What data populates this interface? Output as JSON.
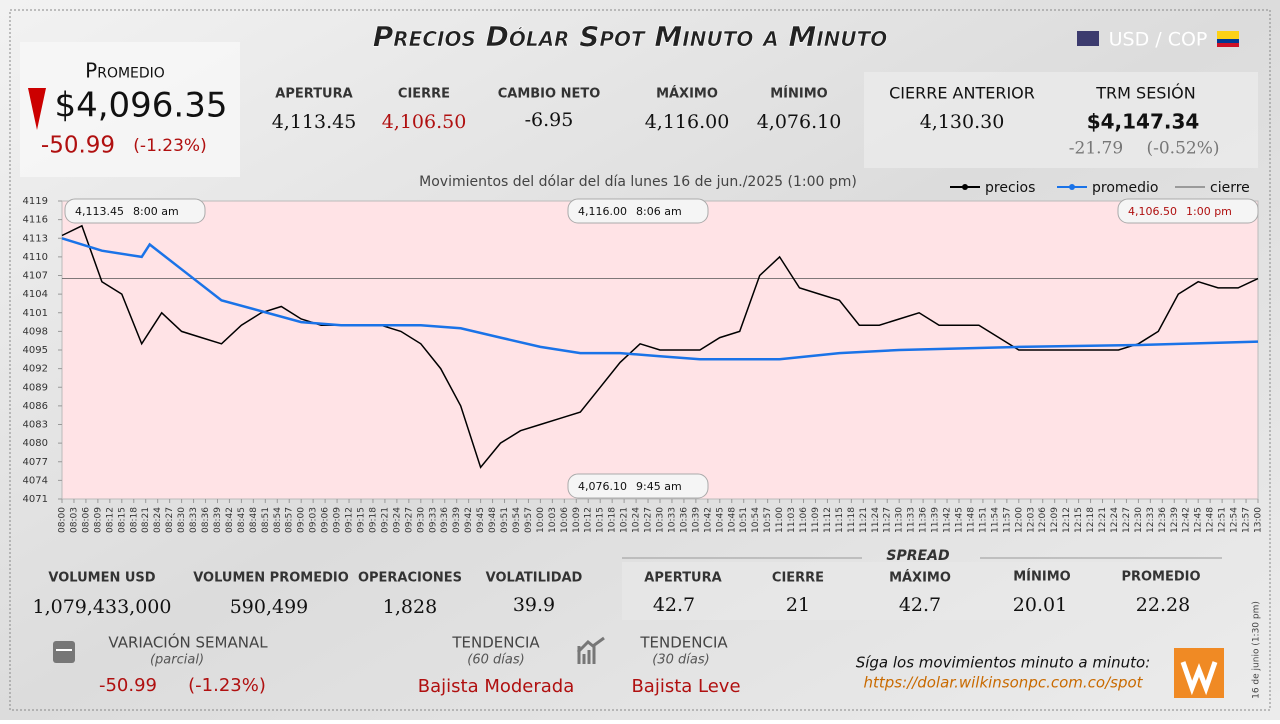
{
  "header": {
    "title": "Precios Dólar Spot Minuto a Minuto",
    "pair": "USD / COP"
  },
  "summary": {
    "label": "Promedio",
    "value": "$4,096.35",
    "change": "-50.99",
    "change_pct": "(-1.23%)"
  },
  "stats": [
    {
      "label": "APERTURA",
      "value": "4,113.45"
    },
    {
      "label": "CIERRE",
      "value": "4,106.50"
    },
    {
      "label": "CAMBIO NETO",
      "value": "-6.95"
    },
    {
      "label": "MÁXIMO",
      "value": "4,116.00"
    },
    {
      "label": "MÍNIMO",
      "value": "4,076.10"
    }
  ],
  "previous": [
    {
      "label": "CIERRE ANTERIOR",
      "value": "4,130.30"
    },
    {
      "label": "TRM SESIÓN",
      "value": "$4,147.34",
      "change": "-21.79",
      "change_pct": "(-0.52%)"
    }
  ],
  "chart_data": {
    "type": "line",
    "title": "Movimientos del dólar del día lunes 16 de jun./2025 (1:00 pm)",
    "series": [
      {
        "name": "precios",
        "color": "#000000",
        "x": [
          "08:00",
          "08:05",
          "08:10",
          "08:15",
          "08:20",
          "08:25",
          "08:30",
          "08:35",
          "08:40",
          "08:45",
          "08:50",
          "08:55",
          "09:00",
          "09:05",
          "09:10",
          "09:15",
          "09:20",
          "09:25",
          "09:30",
          "09:35",
          "09:40",
          "09:45",
          "09:50",
          "09:55",
          "10:00",
          "10:05",
          "10:10",
          "10:15",
          "10:20",
          "10:25",
          "10:30",
          "10:35",
          "10:40",
          "10:45",
          "10:50",
          "10:55",
          "11:00",
          "11:05",
          "11:10",
          "11:15",
          "11:20",
          "11:25",
          "11:30",
          "11:35",
          "11:40",
          "11:45",
          "11:50",
          "11:55",
          "12:00",
          "12:05",
          "12:10",
          "12:15",
          "12:20",
          "12:25",
          "12:30",
          "12:35",
          "12:40",
          "12:45",
          "12:50",
          "12:55",
          "13:00"
        ],
        "values": [
          4113.45,
          4115,
          4106,
          4104,
          4096,
          4101,
          4098,
          4097,
          4096,
          4099,
          4101,
          4102,
          4100,
          4099,
          4099,
          4099,
          4099,
          4098,
          4096,
          4092,
          4086,
          4076.1,
          4080,
          4082,
          4083,
          4084,
          4085,
          4089,
          4093,
          4096,
          4095,
          4095,
          4095,
          4097,
          4098,
          4107,
          4110,
          4105,
          4104,
          4103,
          4099,
          4099,
          4100,
          4101,
          4099,
          4099,
          4099,
          4097,
          4095,
          4095,
          4095,
          4095,
          4095,
          4095,
          4096,
          4098,
          4104,
          4106,
          4105,
          4105,
          4106.5
        ]
      },
      {
        "name": "promedio",
        "color": "#1a73e8",
        "x": [
          "08:00",
          "08:10",
          "08:20",
          "08:22",
          "08:30",
          "08:40",
          "09:00",
          "09:10",
          "09:30",
          "09:40",
          "09:50",
          "10:00",
          "10:10",
          "10:20",
          "10:30",
          "10:40",
          "11:00",
          "11:15",
          "11:30",
          "12:00",
          "12:30",
          "13:00"
        ],
        "values": [
          4113,
          4111,
          4110,
          4112,
          4108,
          4103,
          4099.5,
          4099,
          4099,
          4098.5,
          4097,
          4095.5,
          4094.5,
          4094.5,
          4094,
          4093.5,
          4093.5,
          4094.5,
          4095,
          4095.5,
          4095.8,
          4096.35
        ]
      }
    ],
    "reference_line": {
      "name": "cierre",
      "value": 4106.5,
      "color": "#555555"
    },
    "ylim": [
      4071,
      4119
    ],
    "yticks": [
      4071,
      4074,
      4077,
      4080,
      4083,
      4086,
      4089,
      4092,
      4095,
      4098,
      4101,
      4104,
      4107,
      4110,
      4113,
      4116,
      4119
    ],
    "xlim": [
      "08:00",
      "13:00"
    ],
    "xticks": [
      "08:00",
      "08:03",
      "08:06",
      "08:09",
      "08:12",
      "08:15",
      "08:18",
      "08:21",
      "08:24",
      "08:27",
      "08:30",
      "08:33",
      "08:36",
      "08:39",
      "08:42",
      "08:45",
      "08:48",
      "08:51",
      "08:54",
      "08:57",
      "09:00",
      "09:03",
      "09:06",
      "09:09",
      "09:12",
      "09:15",
      "09:18",
      "09:21",
      "09:24",
      "09:27",
      "09:30",
      "09:33",
      "09:36",
      "09:39",
      "09:42",
      "09:45",
      "09:48",
      "09:51",
      "09:54",
      "09:57",
      "10:00",
      "10:03",
      "10:06",
      "10:09",
      "10:12",
      "10:15",
      "10:18",
      "10:21",
      "10:24",
      "10:27",
      "10:30",
      "10:33",
      "10:36",
      "10:39",
      "10:42",
      "10:45",
      "10:48",
      "10:51",
      "10:54",
      "10:57",
      "11:00",
      "11:03",
      "11:06",
      "11:09",
      "11:12",
      "11:15",
      "11:18",
      "11:21",
      "11:24",
      "11:27",
      "11:30",
      "11:33",
      "11:36",
      "11:39",
      "11:42",
      "11:45",
      "11:48",
      "11:51",
      "11:54",
      "11:57",
      "12:00",
      "12:03",
      "12:06",
      "12:09",
      "12:12",
      "12:15",
      "12:18",
      "12:21",
      "12:24",
      "12:27",
      "12:30",
      "12:33",
      "12:36",
      "12:39",
      "12:42",
      "12:45",
      "12:48",
      "12:51",
      "12:54",
      "12:57",
      "13:00"
    ],
    "annotations": [
      {
        "value": "4,113.45",
        "time": "8:00 am"
      },
      {
        "value": "4,116.00",
        "time": "8:06 am"
      },
      {
        "value": "4,106.50",
        "time": "1:00 pm"
      },
      {
        "value": "4,076.10",
        "time": "9:45 am"
      }
    ]
  },
  "volume": [
    {
      "label": "VOLUMEN USD",
      "value": "1,079,433,000"
    },
    {
      "label": "VOLUMEN PROMEDIO",
      "value": "590,499"
    },
    {
      "label": "OPERACIONES",
      "value": "1,828"
    },
    {
      "label": "VOLATILIDAD",
      "value": "39.9"
    }
  ],
  "spread": {
    "title": "SPREAD",
    "items": [
      {
        "label": "APERTURA",
        "value": "42.7"
      },
      {
        "label": "CIERRE",
        "value": "21"
      },
      {
        "label": "MÁXIMO",
        "value": "42.7"
      },
      {
        "label": "MÍNIMO",
        "value": "20.01"
      },
      {
        "label": "PROMEDIO",
        "value": "22.28"
      }
    ]
  },
  "weekly": {
    "label": "VARIACIÓN SEMANAL",
    "note": "(parcial)",
    "change": "-50.99",
    "change_pct": "(-1.23%)"
  },
  "trends": [
    {
      "label": "TENDENCIA",
      "note": "(60 días)",
      "value": "Bajista Moderada"
    },
    {
      "label": "TENDENCIA",
      "note": "(30 días)",
      "value": "Bajista Leve"
    }
  ],
  "footer": {
    "text": "Síga los movimientos minuto a minuto:",
    "url": "https://dolar.wilkinsonpc.com.co/spot",
    "side_note": "16 de junio (1:30 pm)"
  }
}
